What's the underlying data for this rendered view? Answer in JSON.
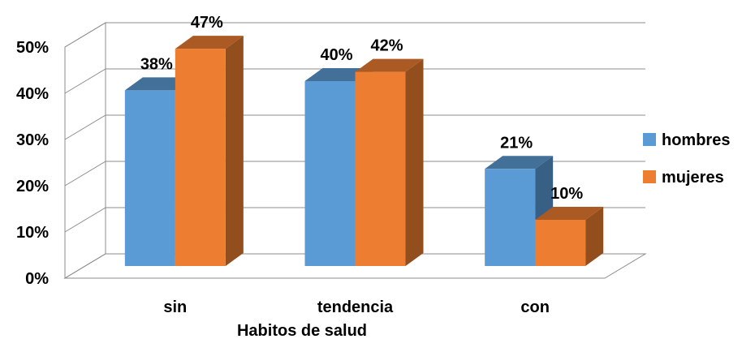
{
  "chart_data": {
    "type": "bar",
    "title": "",
    "xlabel": "Habitos de salud",
    "ylabel": "",
    "categories": [
      "sin",
      "tendencia",
      "con"
    ],
    "series": [
      {
        "name": "hombres",
        "values": [
          38,
          40,
          21
        ],
        "labels": [
          "38%",
          "40%",
          "21%"
        ],
        "color": "#5B9BD5"
      },
      {
        "name": "mujeres",
        "values": [
          47,
          42,
          10
        ],
        "labels": [
          "47%",
          "42%",
          "10%"
        ],
        "color": "#ED7D31"
      }
    ],
    "ylim": [
      0,
      50
    ],
    "yticks": [
      "0%",
      "10%",
      "20%",
      "30%",
      "40%",
      "50%"
    ],
    "grid": true,
    "legend": "right",
    "style": "3d-clustered-column"
  }
}
